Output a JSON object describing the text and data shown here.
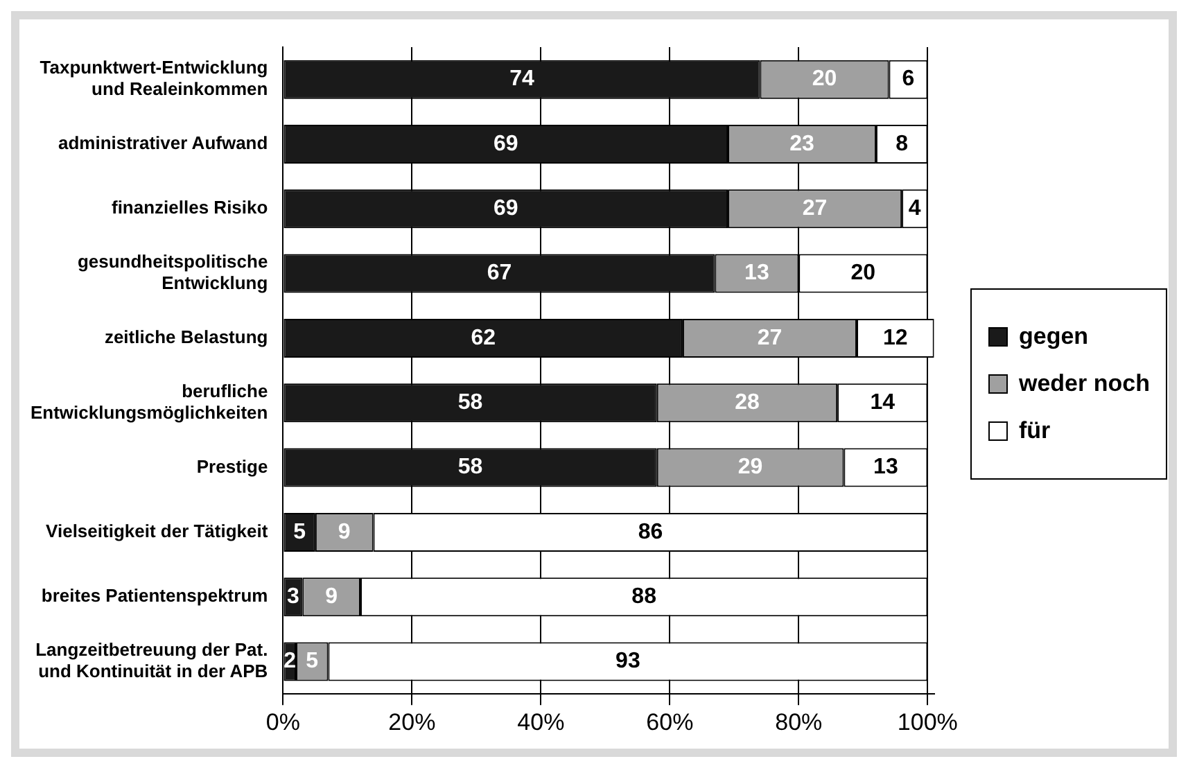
{
  "chart_data": {
    "type": "bar",
    "orientation": "horizontal",
    "stacked": true,
    "categories": [
      "Taxpunktwert-Entwicklung\nund Realeinkommen",
      "administrativer Aufwand",
      "finanzielles Risiko",
      "gesundheitspolitische\nEntwicklung",
      "zeitliche Belastung",
      "berufliche\nEntwicklungsmöglichkeiten",
      "Prestige",
      "Vielseitigkeit der Tätigkeit",
      "breites Patientenspektrum",
      "Langzeitbetreuung der Pat.\nund Kontinuität in der APB"
    ],
    "series": [
      {
        "name": "gegen",
        "color": "#1a1a1a",
        "values": [
          74,
          69,
          69,
          67,
          62,
          58,
          58,
          5,
          3,
          2
        ]
      },
      {
        "name": "weder noch",
        "color": "#a0a0a0",
        "values": [
          20,
          23,
          27,
          13,
          27,
          28,
          29,
          9,
          9,
          5
        ]
      },
      {
        "name": "für",
        "color": "#ffffff",
        "values": [
          6,
          8,
          4,
          20,
          12,
          14,
          13,
          86,
          88,
          93
        ]
      }
    ],
    "xlim": [
      0,
      101
    ],
    "xticks": [
      {
        "value": 0,
        "label": "0%"
      },
      {
        "value": 20,
        "label": "20%"
      },
      {
        "value": 40,
        "label": "40%"
      },
      {
        "value": 60,
        "label": "60%"
      },
      {
        "value": 80,
        "label": "80%"
      },
      {
        "value": 100,
        "label": "100%"
      }
    ],
    "grid": "x",
    "legend": "right",
    "data_labels": true
  }
}
